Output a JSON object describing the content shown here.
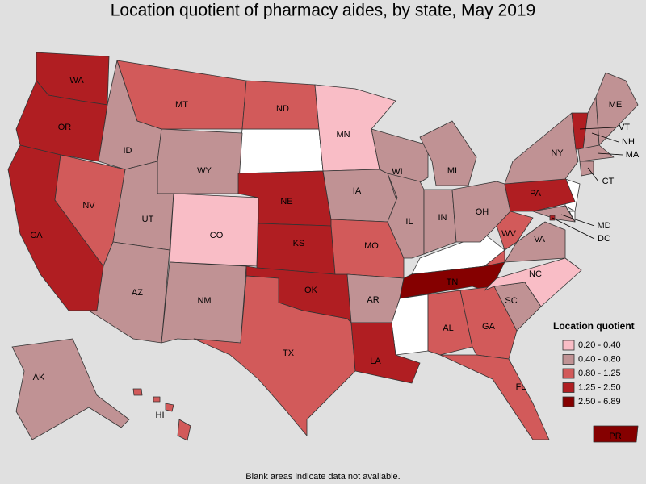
{
  "title": "Location quotient of pharmacy aides, by state, May 2019",
  "legend": {
    "title": "Location quotient",
    "bins": [
      {
        "label": "0.20 - 0.40",
        "color": "#f9bdc6"
      },
      {
        "label": "0.40 - 0.80",
        "color": "#c09294"
      },
      {
        "label": "0.80 - 1.25",
        "color": "#d25a5a"
      },
      {
        "label": "1.25 - 2.50",
        "color": "#b01e22"
      },
      {
        "label": "2.50 - 6.89",
        "color": "#850000"
      }
    ]
  },
  "states": [
    {
      "abbr": "WA",
      "bin": 3
    },
    {
      "abbr": "OR",
      "bin": 3
    },
    {
      "abbr": "CA",
      "bin": 3
    },
    {
      "abbr": "NV",
      "bin": 2
    },
    {
      "abbr": "ID",
      "bin": 1
    },
    {
      "abbr": "MT",
      "bin": 2
    },
    {
      "abbr": "WY",
      "bin": 1
    },
    {
      "abbr": "UT",
      "bin": 1
    },
    {
      "abbr": "AZ",
      "bin": 1
    },
    {
      "abbr": "CO",
      "bin": 0
    },
    {
      "abbr": "NM",
      "bin": 1
    },
    {
      "abbr": "ND",
      "bin": 2
    },
    {
      "abbr": "NE",
      "bin": 3
    },
    {
      "abbr": "KS",
      "bin": 3
    },
    {
      "abbr": "OK",
      "bin": 3
    },
    {
      "abbr": "TX",
      "bin": 2
    },
    {
      "abbr": "MN",
      "bin": 0
    },
    {
      "abbr": "IA",
      "bin": 1
    },
    {
      "abbr": "MO",
      "bin": 2
    },
    {
      "abbr": "AR",
      "bin": 1
    },
    {
      "abbr": "LA",
      "bin": 3
    },
    {
      "abbr": "WI",
      "bin": 1
    },
    {
      "abbr": "IL",
      "bin": 1
    },
    {
      "abbr": "MI",
      "bin": 1
    },
    {
      "abbr": "IN",
      "bin": 1
    },
    {
      "abbr": "OH",
      "bin": 1
    },
    {
      "abbr": "TN",
      "bin": 4
    },
    {
      "abbr": "AL",
      "bin": 2
    },
    {
      "abbr": "GA",
      "bin": 2
    },
    {
      "abbr": "FL",
      "bin": 2
    },
    {
      "abbr": "SC",
      "bin": 1
    },
    {
      "abbr": "NC",
      "bin": 0
    },
    {
      "abbr": "VA",
      "bin": 1
    },
    {
      "abbr": "WV",
      "bin": 2
    },
    {
      "abbr": "PA",
      "bin": 3
    },
    {
      "abbr": "NY",
      "bin": 1
    },
    {
      "abbr": "VT",
      "bin": 3
    },
    {
      "abbr": "NH",
      "bin": 1
    },
    {
      "abbr": "ME",
      "bin": 1
    },
    {
      "abbr": "MA",
      "bin": 1
    },
    {
      "abbr": "CT",
      "bin": 1
    },
    {
      "abbr": "MD",
      "bin": 1
    },
    {
      "abbr": "DC",
      "bin": 3
    },
    {
      "abbr": "AK",
      "bin": 1
    },
    {
      "abbr": "HI",
      "bin": 2
    },
    {
      "abbr": "PR",
      "bin": 4
    }
  ],
  "footnote": "Blank areas indicate data not available."
}
